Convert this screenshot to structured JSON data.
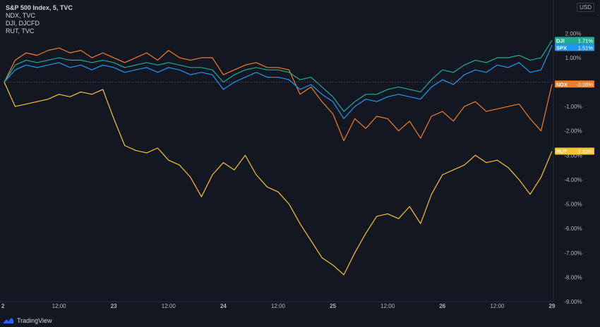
{
  "legend": {
    "main": "S&P 500 Index, 5, TVC",
    "line2": "NDX, TVC",
    "line3": "DJI, DJCFD",
    "line4": "RUT, TVC"
  },
  "currency": "USD",
  "footer": {
    "brand": "TradingView"
  },
  "colors": {
    "background": "#131722",
    "grid": "#1e222d",
    "axis_text": "#b2b5be"
  },
  "chart_data": {
    "type": "line",
    "xlabel": "",
    "ylabel": "",
    "ylim": [
      -9,
      2.5
    ],
    "y_unit": "%",
    "grid": false,
    "y_ticks": [
      {
        "value": 2,
        "label": "2.00%"
      },
      {
        "value": 1,
        "label": "1.00%"
      },
      {
        "value": -1,
        "label": "-1.00%"
      },
      {
        "value": -2,
        "label": "-2.00%"
      },
      {
        "value": -3,
        "label": "-3.00%"
      },
      {
        "value": -4,
        "label": "-4.00%"
      },
      {
        "value": -5,
        "label": "-5.00%"
      },
      {
        "value": -6,
        "label": "-6.00%"
      },
      {
        "value": -7,
        "label": "-7.00%"
      },
      {
        "value": -8,
        "label": "-8.00%"
      },
      {
        "value": -9,
        "label": "-9.00%"
      }
    ],
    "x_ticks": [
      {
        "t": 0,
        "label": "2"
      },
      {
        "t": 0.5,
        "label": "12:00"
      },
      {
        "t": 1,
        "label": "23"
      },
      {
        "t": 1.5,
        "label": "12:00"
      },
      {
        "t": 2,
        "label": "24"
      },
      {
        "t": 2.5,
        "label": "12:00"
      },
      {
        "t": 3,
        "label": "25"
      },
      {
        "t": 3.5,
        "label": "12:00"
      },
      {
        "t": 4,
        "label": "26"
      },
      {
        "t": 4.5,
        "label": "12:00"
      },
      {
        "t": 5,
        "label": "29"
      }
    ],
    "series": [
      {
        "name": "NDX",
        "color": "#f57c26",
        "end_label": "NDX",
        "end_value_label": "-0.08%",
        "x": [
          0,
          0.1,
          0.2,
          0.3,
          0.4,
          0.5,
          0.6,
          0.7,
          0.8,
          0.9,
          1.0,
          1.1,
          1.2,
          1.3,
          1.4,
          1.5,
          1.6,
          1.7,
          1.8,
          1.9,
          2.0,
          2.1,
          2.2,
          2.3,
          2.4,
          2.5,
          2.6,
          2.7,
          2.8,
          2.9,
          3.0,
          3.1,
          3.2,
          3.3,
          3.4,
          3.5,
          3.6,
          3.7,
          3.8,
          3.9,
          4.0,
          4.1,
          4.2,
          4.3,
          4.4,
          4.5,
          4.6,
          4.7,
          4.8,
          4.9,
          5.0
        ],
        "y": [
          0.0,
          0.9,
          1.2,
          1.1,
          1.3,
          1.4,
          1.2,
          1.3,
          1.0,
          1.2,
          1.0,
          0.8,
          1.0,
          1.2,
          0.9,
          1.3,
          1.0,
          0.9,
          1.0,
          1.0,
          0.3,
          0.5,
          0.7,
          0.8,
          0.6,
          0.6,
          0.5,
          -0.5,
          -0.2,
          -0.8,
          -1.3,
          -2.4,
          -1.5,
          -1.9,
          -1.4,
          -1.5,
          -2.0,
          -1.6,
          -2.3,
          -1.4,
          -1.2,
          -1.6,
          -1.0,
          -0.8,
          -1.2,
          -1.1,
          -1.0,
          -0.9,
          -1.5,
          -2.0,
          -0.08
        ]
      },
      {
        "name": "SPX",
        "color": "#2196f3",
        "end_label": "SPX",
        "end_value_label": "1.51%",
        "x": [
          0,
          0.1,
          0.2,
          0.3,
          0.4,
          0.5,
          0.6,
          0.7,
          0.8,
          0.9,
          1.0,
          1.1,
          1.2,
          1.3,
          1.4,
          1.5,
          1.6,
          1.7,
          1.8,
          1.9,
          2.0,
          2.1,
          2.2,
          2.3,
          2.4,
          2.5,
          2.6,
          2.7,
          2.8,
          2.9,
          3.0,
          3.1,
          3.2,
          3.3,
          3.4,
          3.5,
          3.6,
          3.7,
          3.8,
          3.9,
          4.0,
          4.1,
          4.2,
          4.3,
          4.4,
          4.5,
          4.6,
          4.7,
          4.8,
          4.9,
          5.0
        ],
        "y": [
          0.0,
          0.5,
          0.7,
          0.6,
          0.7,
          0.8,
          0.6,
          0.7,
          0.5,
          0.7,
          0.6,
          0.4,
          0.5,
          0.6,
          0.4,
          0.6,
          0.5,
          0.3,
          0.4,
          0.3,
          -0.3,
          0.0,
          0.2,
          0.4,
          0.2,
          0.2,
          0.1,
          -0.3,
          -0.1,
          -0.5,
          -0.8,
          -1.5,
          -1.0,
          -0.7,
          -0.8,
          -0.6,
          -0.5,
          -0.6,
          -0.7,
          -0.2,
          0.1,
          -0.1,
          0.3,
          0.5,
          0.4,
          0.7,
          0.6,
          0.8,
          0.4,
          0.5,
          1.51
        ]
      },
      {
        "name": "DJI",
        "color": "#22ab94",
        "end_label": "DJI",
        "end_value_label": "1.71%",
        "x": [
          0,
          0.1,
          0.2,
          0.3,
          0.4,
          0.5,
          0.6,
          0.7,
          0.8,
          0.9,
          1.0,
          1.1,
          1.2,
          1.3,
          1.4,
          1.5,
          1.6,
          1.7,
          1.8,
          1.9,
          2.0,
          2.1,
          2.2,
          2.3,
          2.4,
          2.5,
          2.6,
          2.7,
          2.8,
          2.9,
          3.0,
          3.1,
          3.2,
          3.3,
          3.4,
          3.5,
          3.6,
          3.7,
          3.8,
          3.9,
          4.0,
          4.1,
          4.2,
          4.3,
          4.4,
          4.5,
          4.6,
          4.7,
          4.8,
          4.9,
          5.0
        ],
        "y": [
          0.0,
          0.7,
          0.9,
          0.8,
          0.9,
          1.0,
          0.9,
          0.9,
          0.8,
          0.9,
          0.8,
          0.6,
          0.7,
          0.8,
          0.7,
          0.8,
          0.7,
          0.6,
          0.6,
          0.5,
          0.0,
          0.3,
          0.5,
          0.6,
          0.5,
          0.5,
          0.4,
          0.1,
          0.2,
          -0.2,
          -0.6,
          -1.2,
          -0.8,
          -0.5,
          -0.5,
          -0.3,
          -0.2,
          -0.3,
          -0.4,
          0.1,
          0.5,
          0.4,
          0.7,
          0.9,
          0.8,
          1.0,
          1.0,
          1.1,
          0.9,
          1.0,
          1.71
        ]
      },
      {
        "name": "RUT",
        "color": "#f9c230",
        "end_label": "RUT",
        "end_value_label": "-2.83%",
        "x": [
          0,
          0.1,
          0.2,
          0.3,
          0.4,
          0.5,
          0.6,
          0.7,
          0.8,
          0.9,
          1.0,
          1.1,
          1.2,
          1.3,
          1.4,
          1.5,
          1.6,
          1.7,
          1.8,
          1.9,
          2.0,
          2.1,
          2.2,
          2.3,
          2.4,
          2.5,
          2.6,
          2.7,
          2.8,
          2.9,
          3.0,
          3.1,
          3.2,
          3.3,
          3.4,
          3.5,
          3.6,
          3.7,
          3.8,
          3.9,
          4.0,
          4.1,
          4.2,
          4.3,
          4.4,
          4.5,
          4.6,
          4.7,
          4.8,
          4.9,
          5.0
        ],
        "y": [
          0.0,
          -1.0,
          -0.9,
          -0.8,
          -0.7,
          -0.5,
          -0.6,
          -0.4,
          -0.5,
          -0.3,
          -1.5,
          -2.6,
          -2.8,
          -2.9,
          -2.7,
          -3.2,
          -3.4,
          -3.9,
          -4.7,
          -3.8,
          -3.3,
          -3.6,
          -3.0,
          -3.8,
          -4.3,
          -4.5,
          -5.0,
          -5.8,
          -6.5,
          -7.2,
          -7.5,
          -7.9,
          -7.0,
          -6.2,
          -5.5,
          -5.4,
          -5.6,
          -5.1,
          -5.8,
          -4.6,
          -3.8,
          -3.6,
          -3.4,
          -3.0,
          -3.3,
          -3.2,
          -3.5,
          -4.0,
          -4.6,
          -3.9,
          -2.83
        ]
      }
    ]
  }
}
